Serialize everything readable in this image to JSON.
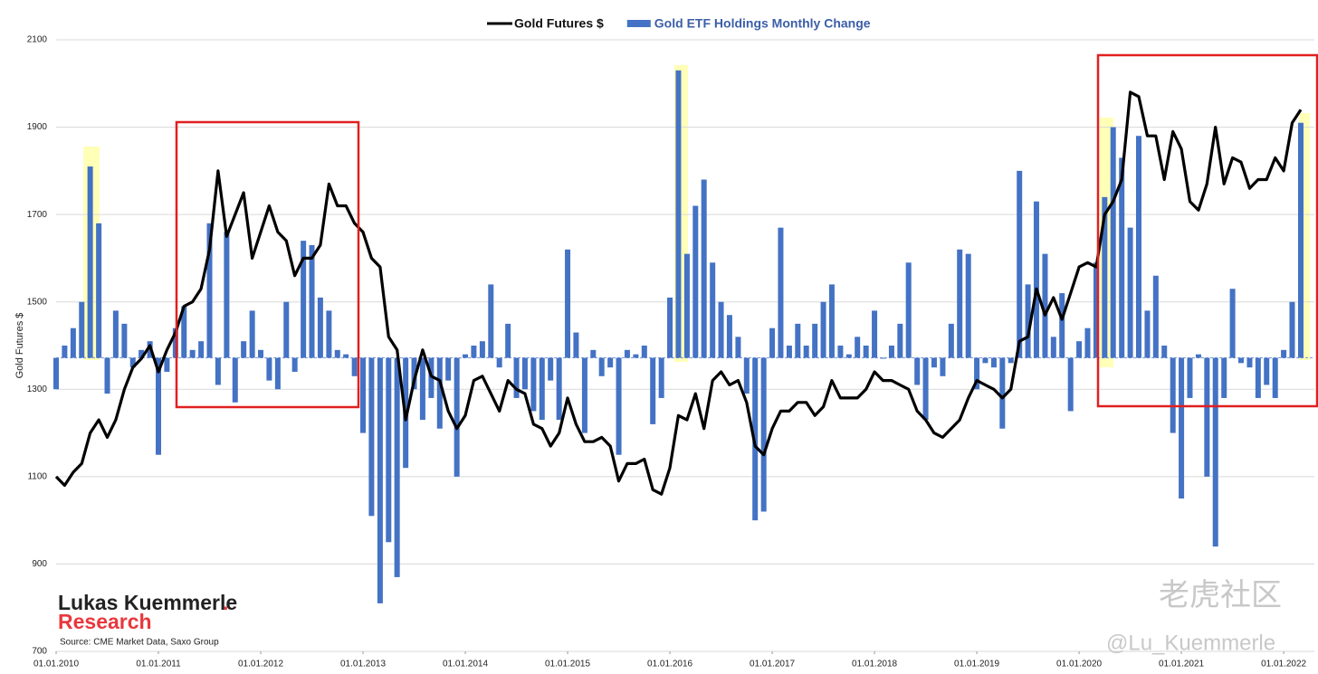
{
  "chart_data": {
    "type": "bar-line",
    "y_label": "Gold Futures $",
    "annotations": {
      "brand_name": "Lukas Kuemmerle",
      "brand_dot": ".",
      "brand_research": "Research",
      "source": "Source: CME Market Data, Saxo Group",
      "watermark": "老虎社区",
      "handle": "@Lu_Kuemmerle"
    },
    "xlim": [
      2010,
      2022.3
    ],
    "xticks": [
      {
        "value": 2010,
        "label": "01.01.2010"
      },
      {
        "value": 2011,
        "label": "01.01.2011"
      },
      {
        "value": 2012,
        "label": "01.01.2012"
      },
      {
        "value": 2013,
        "label": "01.01.2013"
      },
      {
        "value": 2014,
        "label": "01.01.2014"
      },
      {
        "value": 2015,
        "label": "01.01.2015"
      },
      {
        "value": 2016,
        "label": "01.01.2016"
      },
      {
        "value": 2017,
        "label": "01.01.2017"
      },
      {
        "value": 2018,
        "label": "01.01.2018"
      },
      {
        "value": 2019,
        "label": "01.01.2019"
      },
      {
        "value": 2020,
        "label": "01.01.2020"
      },
      {
        "value": 2021,
        "label": "01.01.2021"
      },
      {
        "value": 2022,
        "label": "01.01.2022"
      }
    ],
    "ylim": [
      700,
      2100
    ],
    "yticks": [
      700,
      900,
      1100,
      1300,
      1500,
      1700,
      1900,
      2100
    ],
    "y2lim": [
      -672,
      728
    ],
    "grid": true,
    "x": [
      2010,
      2010.083,
      2010.167,
      2010.25,
      2010.333,
      2010.417,
      2010.5,
      2010.583,
      2010.667,
      2010.75,
      2010.833,
      2010.917,
      2011,
      2011.083,
      2011.167,
      2011.25,
      2011.333,
      2011.417,
      2011.5,
      2011.583,
      2011.667,
      2011.75,
      2011.833,
      2011.917,
      2012,
      2012.083,
      2012.167,
      2012.25,
      2012.333,
      2012.417,
      2012.5,
      2012.583,
      2012.667,
      2012.75,
      2012.833,
      2012.917,
      2013,
      2013.083,
      2013.167,
      2013.25,
      2013.333,
      2013.417,
      2013.5,
      2013.583,
      2013.667,
      2013.75,
      2013.833,
      2013.917,
      2014,
      2014.083,
      2014.167,
      2014.25,
      2014.333,
      2014.417,
      2014.5,
      2014.583,
      2014.667,
      2014.75,
      2014.833,
      2014.917,
      2015,
      2015.083,
      2015.167,
      2015.25,
      2015.333,
      2015.417,
      2015.5,
      2015.583,
      2015.667,
      2015.75,
      2015.833,
      2015.917,
      2016,
      2016.083,
      2016.167,
      2016.25,
      2016.333,
      2016.417,
      2016.5,
      2016.583,
      2016.667,
      2016.75,
      2016.833,
      2016.917,
      2017,
      2017.083,
      2017.167,
      2017.25,
      2017.333,
      2017.417,
      2017.5,
      2017.583,
      2017.667,
      2017.75,
      2017.833,
      2017.917,
      2018,
      2018.083,
      2018.167,
      2018.25,
      2018.333,
      2018.417,
      2018.5,
      2018.583,
      2018.667,
      2018.75,
      2018.833,
      2018.917,
      2019,
      2019.083,
      2019.167,
      2019.25,
      2019.333,
      2019.417,
      2019.5,
      2019.583,
      2019.667,
      2019.75,
      2019.833,
      2019.917,
      2020,
      2020.083,
      2020.167,
      2020.25,
      2020.333,
      2020.417,
      2020.5,
      2020.583,
      2020.667,
      2020.75,
      2020.833,
      2020.917,
      2021,
      2021.083,
      2021.167,
      2021.25,
      2021.333,
      2021.417,
      2021.5,
      2021.583,
      2021.667,
      2021.75,
      2021.833,
      2021.917,
      2022,
      2022.083,
      2022.167
    ],
    "series": [
      {
        "name": "Gold ETF Holdings Monthly Change",
        "color": "#4472c4",
        "kind": "bar",
        "axis": "y2",
        "values": [
          -72,
          28,
          68,
          128,
          438,
          308,
          -82,
          108,
          78,
          -22,
          18,
          38,
          -222,
          -32,
          68,
          118,
          18,
          38,
          308,
          -62,
          288,
          -102,
          38,
          108,
          18,
          -52,
          -72,
          128,
          -32,
          268,
          258,
          138,
          108,
          18,
          8,
          -42,
          -172,
          -362,
          -562,
          -422,
          -502,
          -252,
          -72,
          -142,
          -92,
          -162,
          -52,
          -272,
          8,
          28,
          38,
          168,
          -22,
          78,
          -92,
          -72,
          -122,
          -142,
          -52,
          -142,
          248,
          58,
          -172,
          18,
          -42,
          -22,
          -222,
          18,
          8,
          28,
          -152,
          -92,
          138,
          658,
          238,
          348,
          408,
          218,
          128,
          98,
          48,
          -82,
          -372,
          -352,
          68,
          298,
          28,
          78,
          28,
          78,
          128,
          168,
          28,
          8,
          48,
          28,
          108,
          -2,
          28,
          78,
          218,
          -62,
          -142,
          -22,
          -42,
          78,
          248,
          238,
          -72,
          -12,
          -22,
          -162,
          -12,
          428,
          168,
          358,
          238,
          48,
          148,
          -122,
          38,
          68,
          218,
          368,
          528,
          458,
          298,
          508,
          108,
          188,
          28,
          -172,
          -322,
          -92,
          8,
          -272,
          -432,
          -92,
          158,
          -12,
          -22,
          -92,
          -62,
          -92,
          18,
          128,
          538
        ]
      },
      {
        "name": "Gold Futures $",
        "color": "#000000",
        "kind": "line",
        "values": [
          1100,
          1080,
          1110,
          1130,
          1200,
          1230,
          1190,
          1230,
          1300,
          1350,
          1370,
          1400,
          1340,
          1390,
          1430,
          1490,
          1500,
          1530,
          1620,
          1800,
          1650,
          1700,
          1750,
          1600,
          1660,
          1720,
          1660,
          1640,
          1560,
          1600,
          1600,
          1630,
          1770,
          1720,
          1720,
          1680,
          1660,
          1600,
          1580,
          1420,
          1390,
          1230,
          1320,
          1390,
          1330,
          1320,
          1250,
          1210,
          1240,
          1320,
          1330,
          1290,
          1250,
          1320,
          1300,
          1290,
          1220,
          1210,
          1170,
          1200,
          1280,
          1220,
          1180,
          1180,
          1190,
          1170,
          1090,
          1130,
          1130,
          1140,
          1070,
          1060,
          1120,
          1240,
          1230,
          1290,
          1210,
          1320,
          1340,
          1310,
          1320,
          1270,
          1170,
          1150,
          1210,
          1250,
          1250,
          1270,
          1270,
          1240,
          1260,
          1320,
          1280,
          1280,
          1280,
          1300,
          1340,
          1320,
          1320,
          1310,
          1300,
          1250,
          1230,
          1200,
          1190,
          1210,
          1230,
          1280,
          1320,
          1310,
          1300,
          1280,
          1300,
          1410,
          1420,
          1530,
          1470,
          1510,
          1460,
          1520,
          1580,
          1590,
          1580,
          1700,
          1730,
          1780,
          1980,
          1970,
          1880,
          1880,
          1780,
          1890,
          1850,
          1730,
          1710,
          1770,
          1900,
          1770,
          1830,
          1820,
          1760,
          1780,
          1780,
          1830,
          1800,
          1910,
          1940
        ]
      }
    ]
  }
}
